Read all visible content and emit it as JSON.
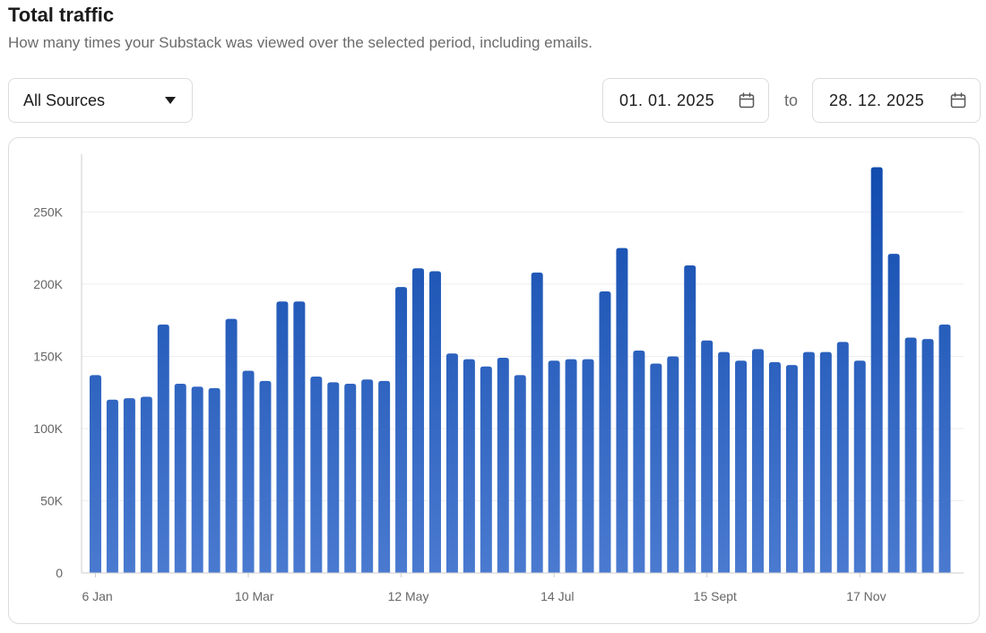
{
  "header": {
    "title": "Total traffic",
    "subtitle": "How many times your Substack was viewed over the selected period, including emails."
  },
  "filters": {
    "source_value": "All Sources",
    "date_from": "01. 01. 2025",
    "date_to": "28. 12. 2025",
    "to_label": "to"
  },
  "colors": {
    "bar_top": "#0f4aad",
    "bar_bottom": "#4a7ad0",
    "grid": "#eeeeee",
    "axis_text": "#666666"
  },
  "chart_data": {
    "type": "bar",
    "y_ticks": [
      0,
      50000,
      100000,
      150000,
      200000,
      250000
    ],
    "y_tick_labels": [
      "0",
      "50K",
      "100K",
      "150K",
      "200K",
      "250K"
    ],
    "ylim": [
      0,
      290000
    ],
    "x_tick_labels": [
      {
        "index": 0,
        "label": "6 Jan"
      },
      {
        "index": 9,
        "label": "10 Mar"
      },
      {
        "index": 18,
        "label": "12 May"
      },
      {
        "index": 27,
        "label": "14 Jul"
      },
      {
        "index": 36,
        "label": "15 Sept"
      },
      {
        "index": 45,
        "label": "17 Nov"
      }
    ],
    "grid": true,
    "values": [
      137000,
      120000,
      121000,
      122000,
      172000,
      131000,
      129000,
      128000,
      176000,
      140000,
      133000,
      188000,
      188000,
      136000,
      132000,
      131000,
      134000,
      133000,
      198000,
      211000,
      209000,
      152000,
      148000,
      143000,
      149000,
      137000,
      208000,
      147000,
      148000,
      148000,
      195000,
      225000,
      154000,
      145000,
      150000,
      213000,
      161000,
      153000,
      147000,
      155000,
      146000,
      144000,
      153000,
      153000,
      160000,
      147000,
      281000,
      221000,
      163000,
      162000,
      172000
    ]
  }
}
